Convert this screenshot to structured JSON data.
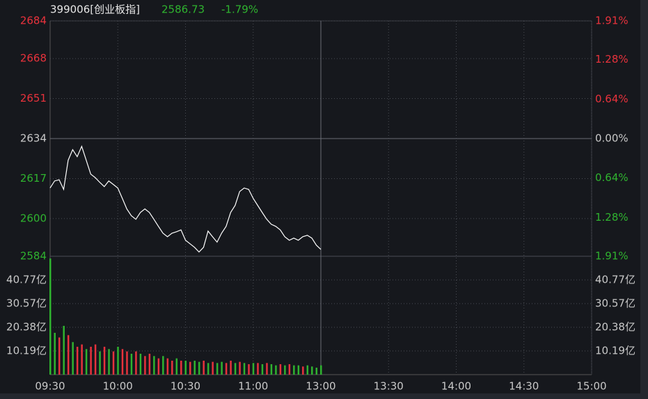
{
  "chart_data": {
    "type": "line",
    "code": "399006[创业板指]",
    "last_price": 2586.73,
    "change": {
      "value": -1.79,
      "label": "-1.79%"
    },
    "x": [
      0,
      2,
      4,
      6,
      8,
      10,
      12,
      14,
      16,
      18,
      20,
      22,
      24,
      26,
      28,
      30,
      32,
      34,
      36,
      38,
      40,
      42,
      44,
      46,
      48,
      50,
      52,
      54,
      56,
      58,
      60,
      62,
      64,
      66,
      68,
      70,
      72,
      74,
      76,
      78,
      80,
      82,
      84,
      86,
      88,
      90,
      92,
      94,
      96,
      98,
      100,
      102,
      104,
      106,
      108,
      110,
      112,
      114,
      116,
      118,
      120
    ],
    "xlim": [
      0,
      240
    ],
    "xticks": [
      {
        "value": 0,
        "label": "09:30"
      },
      {
        "value": 30,
        "label": "10:00"
      },
      {
        "value": 60,
        "label": "10:30"
      },
      {
        "value": 90,
        "label": "11:00"
      },
      {
        "value": 120,
        "label": "13:00"
      },
      {
        "value": 150,
        "label": "13:30"
      },
      {
        "value": 180,
        "label": "14:00"
      },
      {
        "value": 210,
        "label": "14:30"
      },
      {
        "value": 240,
        "label": "15:00"
      }
    ],
    "ylim": [
      2584,
      2684
    ],
    "yticks": [
      2684,
      2668,
      2651,
      2634,
      2617,
      2600,
      2584
    ],
    "y2lim": [
      -1.91,
      1.91
    ],
    "y2ticks": [
      {
        "value": 1.91,
        "label": "1.91%"
      },
      {
        "value": 1.28,
        "label": "1.28%"
      },
      {
        "value": 0.64,
        "label": "0.64%"
      },
      {
        "value": 0,
        "label": "0.00%"
      },
      {
        "value": -0.64,
        "label": "0.64%"
      },
      {
        "value": -1.28,
        "label": "1.28%"
      },
      {
        "value": -1.91,
        "label": "1.91%"
      }
    ],
    "vlim": [
      0,
      50.96
    ],
    "vticks": [
      {
        "value": 40.77,
        "label": "40.77亿"
      },
      {
        "value": 30.57,
        "label": "30.57亿"
      },
      {
        "value": 20.38,
        "label": "20.38亿"
      },
      {
        "value": 10.19,
        "label": "10.19亿"
      }
    ],
    "up_color": "#e8323c",
    "down_color": "#2fb32f",
    "line_color": "#ffffff",
    "grid": true,
    "series": [
      {
        "values": [
          2613,
          2616,
          2616.5,
          2612.4,
          2624.8,
          2629.3,
          2626.3,
          2630.7,
          2624.8,
          2618.9,
          2617.4,
          2615.4,
          2613.6,
          2616,
          2614.5,
          2613,
          2608.6,
          2604.1,
          2601.2,
          2599.7,
          2602.6,
          2604.1,
          2602.6,
          2599.7,
          2596.7,
          2593.8,
          2592.3,
          2593.8,
          2594.4,
          2595.2,
          2590.8,
          2589.3,
          2587.8,
          2585.8,
          2587.8,
          2594.7,
          2592.3,
          2590,
          2593.8,
          2596.7,
          2602.6,
          2605.6,
          2611.5,
          2613,
          2612.4,
          2608.6,
          2605.6,
          2602.6,
          2599.7,
          2597.6,
          2596.7,
          2595.2,
          2592.3,
          2590.8,
          2591.7,
          2590.8,
          2592.3,
          2592.9,
          2591.7,
          2588.7,
          2586.9
        ]
      },
      {
        "type": "bar",
        "values": [
          50,
          18,
          16,
          21,
          17,
          14,
          12,
          13,
          11,
          12,
          13,
          10,
          12,
          11,
          10,
          12,
          11,
          10,
          9,
          10,
          9,
          8,
          9,
          8,
          7,
          8,
          7,
          6,
          7,
          6,
          6,
          5.5,
          6,
          5.5,
          6,
          5,
          5.5,
          5,
          5.5,
          5,
          6,
          5,
          5.5,
          5,
          4.5,
          5,
          5,
          4.5,
          5,
          4.5,
          4,
          4.5,
          4,
          4.5,
          4,
          4,
          3.5,
          4,
          3.5,
          3,
          4
        ],
        "colors": [
          "#2fb32f",
          "#2fb32f",
          "#e8323c",
          "#2fb32f",
          "#e8323c",
          "#2fb32f",
          "#e8323c",
          "#e8323c",
          "#2fb32f",
          "#e8323c",
          "#e8323c",
          "#2fb32f",
          "#e8323c",
          "#2fb32f",
          "#e8323c",
          "#2fb32f",
          "#e8323c",
          "#e8323c",
          "#2fb32f",
          "#e8323c",
          "#2fb32f",
          "#e8323c",
          "#e8323c",
          "#2fb32f",
          "#e8323c",
          "#2fb32f",
          "#e8323c",
          "#e8323c",
          "#2fb32f",
          "#e8323c",
          "#2fb32f",
          "#e8323c",
          "#2fb32f",
          "#2fb32f",
          "#e8323c",
          "#2fb32f",
          "#e8323c",
          "#2fb32f",
          "#2fb32f",
          "#e8323c",
          "#e8323c",
          "#2fb32f",
          "#e8323c",
          "#2fb32f",
          "#e8323c",
          "#2fb32f",
          "#e8323c",
          "#2fb32f",
          "#e8323c",
          "#2fb32f",
          "#2fb32f",
          "#e8323c",
          "#2fb32f",
          "#e8323c",
          "#2fb32f",
          "#2fb32f",
          "#e8323c",
          "#2fb32f",
          "#2fb32f",
          "#2fb32f",
          "#2fb32f"
        ]
      }
    ]
  }
}
